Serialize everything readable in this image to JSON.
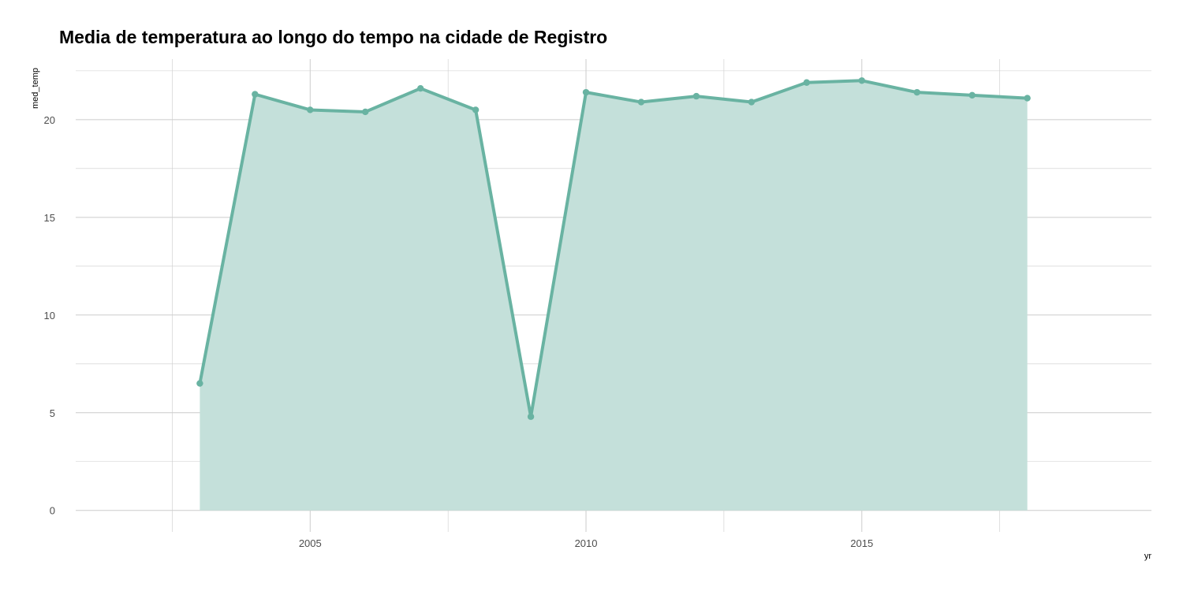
{
  "chart_data": {
    "type": "area",
    "title": "Media de temperatura ao longo do tempo na cidade de Registro",
    "xlabel": "yr",
    "ylabel": "med_temp",
    "x": [
      2003,
      2004,
      2005,
      2006,
      2007,
      2008,
      2009,
      2010,
      2011,
      2012,
      2013,
      2014,
      2015,
      2016,
      2017,
      2018
    ],
    "series": [
      {
        "values": [
          6.5,
          21.3,
          20.5,
          20.4,
          21.6,
          20.5,
          4.8,
          21.4,
          20.9,
          21.2,
          20.9,
          21.9,
          22.0,
          21.4,
          21.25,
          21.1
        ]
      }
    ],
    "xlim": [
      2000.75,
      2020.25
    ],
    "ylim": [
      -1.1,
      23.1
    ],
    "x_ticks": [
      "2005",
      "2010",
      "2015"
    ],
    "y_ticks": [
      "0",
      "5",
      "10",
      "15",
      "20"
    ],
    "grid": true,
    "legend": "none",
    "colors": {
      "line": "#69b3a2",
      "fill": "#c4e0da",
      "grid": "#cccccc",
      "tick_text": "#4d4d4d"
    }
  }
}
